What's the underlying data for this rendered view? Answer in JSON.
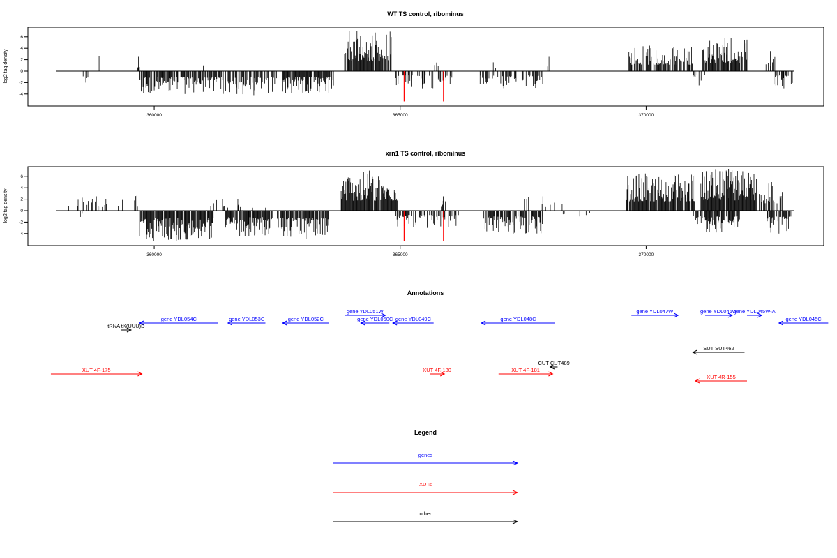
{
  "chart_data": [
    {
      "type": "bar",
      "title": "WT TS control, ribominus",
      "ylabel": "log2 tag density",
      "xlim": [
        358000,
        373000
      ],
      "ylim": [
        -5.5,
        7.5
      ],
      "xticks": [
        360000,
        365000,
        370000
      ],
      "yticks": [
        -4,
        -2,
        0,
        2,
        4,
        6
      ],
      "baseline": 0,
      "series": [
        {
          "color": "#000000",
          "segments": [
            {
              "strand": "+",
              "x_start": 358540,
              "x_end": 359220,
              "density": 0.04,
              "max": 2.6
            },
            {
              "strand": "+",
              "x_start": 359640,
              "x_end": 359720,
              "density": 0.8,
              "max": 2.5
            },
            {
              "strand": "+",
              "x_start": 360950,
              "x_end": 361050,
              "density": 0.2,
              "max": 1.0
            },
            {
              "strand": "+",
              "x_start": 363870,
              "x_end": 364820,
              "density": 0.9,
              "max": 7.0
            },
            {
              "strand": "+",
              "x_start": 365700,
              "x_end": 365780,
              "density": 0.5,
              "max": 1.5
            },
            {
              "strand": "+",
              "x_start": 366700,
              "x_end": 366950,
              "density": 0.2,
              "max": 2.0
            },
            {
              "strand": "+",
              "x_start": 367950,
              "x_end": 368100,
              "density": 0.15,
              "max": 2.5
            },
            {
              "strand": "+",
              "x_start": 369650,
              "x_end": 370950,
              "density": 0.7,
              "max": 4.5
            },
            {
              "strand": "+",
              "x_start": 371150,
              "x_end": 372050,
              "density": 0.9,
              "max": 5.8
            },
            {
              "strand": "+",
              "x_start": 372400,
              "x_end": 372650,
              "density": 0.6,
              "max": 3.5
            },
            {
              "strand": "-",
              "x_start": 358520,
              "x_end": 358700,
              "density": 0.15,
              "max": 2.0
            },
            {
              "strand": "-",
              "x_start": 359700,
              "x_end": 361550,
              "density": 0.7,
              "max": 4.0
            },
            {
              "strand": "-",
              "x_start": 361550,
              "x_end": 362500,
              "density": 0.6,
              "max": 4.2
            },
            {
              "strand": "-",
              "x_start": 362600,
              "x_end": 363650,
              "density": 0.9,
              "max": 4.0
            },
            {
              "strand": "-",
              "x_start": 364850,
              "x_end": 366050,
              "density": 0.3,
              "max": 3.0
            },
            {
              "strand": "-",
              "x_start": 366600,
              "x_end": 367900,
              "density": 0.5,
              "max": 3.0
            },
            {
              "strand": "-",
              "x_start": 370950,
              "x_end": 371200,
              "density": 0.3,
              "max": 2.5
            },
            {
              "strand": "-",
              "x_start": 372600,
              "x_end": 373000,
              "density": 0.5,
              "max": 3.0
            }
          ]
        },
        {
          "color": "#ff0000",
          "bars": [
            {
              "x": 365080,
              "y": -5.3
            },
            {
              "x": 365880,
              "y": -5.3
            }
          ]
        }
      ]
    },
    {
      "type": "bar",
      "title": "xrn1 TS control, ribominus",
      "ylabel": "log2 tag density",
      "xlim": [
        358000,
        373000
      ],
      "ylim": [
        -5.5,
        7.5
      ],
      "xticks": [
        360000,
        365000,
        370000
      ],
      "yticks": [
        -4,
        -2,
        0,
        2,
        4,
        6
      ],
      "baseline": 0,
      "series": [
        {
          "color": "#000000",
          "segments": [
            {
              "strand": "+",
              "x_start": 358250,
              "x_end": 359400,
              "density": 0.15,
              "max": 2.5
            },
            {
              "strand": "+",
              "x_start": 359600,
              "x_end": 359700,
              "density": 0.5,
              "max": 2.8
            },
            {
              "strand": "+",
              "x_start": 361100,
              "x_end": 362300,
              "density": 0.08,
              "max": 2.0
            },
            {
              "strand": "+",
              "x_start": 363800,
              "x_end": 364950,
              "density": 0.95,
              "max": 7.0
            },
            {
              "strand": "+",
              "x_start": 365800,
              "x_end": 365950,
              "density": 0.4,
              "max": 2.5
            },
            {
              "strand": "+",
              "x_start": 367500,
              "x_end": 368300,
              "density": 0.1,
              "max": 2.5
            },
            {
              "strand": "+",
              "x_start": 369600,
              "x_end": 371000,
              "density": 0.95,
              "max": 6.5
            },
            {
              "strand": "+",
              "x_start": 371100,
              "x_end": 372250,
              "density": 0.95,
              "max": 7.2
            },
            {
              "strand": "+",
              "x_start": 372300,
              "x_end": 372800,
              "density": 0.7,
              "max": 5.0
            },
            {
              "strand": "-",
              "x_start": 358500,
              "x_end": 358650,
              "density": 0.2,
              "max": 2.0
            },
            {
              "strand": "-",
              "x_start": 359700,
              "x_end": 361200,
              "density": 0.95,
              "max": 5.3
            },
            {
              "strand": "-",
              "x_start": 361450,
              "x_end": 362400,
              "density": 0.8,
              "max": 4.5
            },
            {
              "strand": "-",
              "x_start": 362500,
              "x_end": 363550,
              "density": 0.9,
              "max": 5.0
            },
            {
              "strand": "-",
              "x_start": 364900,
              "x_end": 366200,
              "density": 0.5,
              "max": 3.0
            },
            {
              "strand": "-",
              "x_start": 366700,
              "x_end": 367900,
              "density": 0.8,
              "max": 4.0
            },
            {
              "strand": "-",
              "x_start": 368300,
              "x_end": 369000,
              "density": 0.1,
              "max": 1.0
            },
            {
              "strand": "-",
              "x_start": 370950,
              "x_end": 371900,
              "density": 0.8,
              "max": 3.8
            },
            {
              "strand": "-",
              "x_start": 372450,
              "x_end": 372950,
              "density": 0.7,
              "max": 4.0
            }
          ]
        },
        {
          "color": "#ff0000",
          "bars": [
            {
              "x": 365080,
              "y": -5.3
            },
            {
              "x": 365880,
              "y": -5.3
            }
          ]
        }
      ]
    },
    {
      "type": "diagram",
      "title": "Annotations",
      "features": [
        {
          "label": "gene YDL054C",
          "category": "gene",
          "strand": "-",
          "arrow_start": 359700,
          "arrow_end": 361300
        },
        {
          "label": "gene YDL053C",
          "category": "gene",
          "strand": "-",
          "arrow_start": 361500,
          "arrow_end": 362260
        },
        {
          "label": "gene YDL052C",
          "category": "gene",
          "strand": "-",
          "arrow_start": 362610,
          "arrow_end": 363550
        },
        {
          "label": "gene YDL051W",
          "category": "gene",
          "strand": "+",
          "arrow_start": 363870,
          "arrow_end": 364700
        },
        {
          "label": "gene YDL050C",
          "category": "gene",
          "strand": "-",
          "arrow_start": 364200,
          "arrow_end": 364780
        },
        {
          "label": "gene YDL049C",
          "category": "gene",
          "strand": "-",
          "arrow_start": 364850,
          "arrow_end": 365680
        },
        {
          "label": "gene YDL048C",
          "category": "gene",
          "strand": "-",
          "arrow_start": 366650,
          "arrow_end": 368150
        },
        {
          "label": "gene YDL047W",
          "category": "gene",
          "strand": "+",
          "arrow_start": 369700,
          "arrow_end": 370650
        },
        {
          "label": "gene YDL046W",
          "category": "gene",
          "strand": "+",
          "arrow_start": 371200,
          "arrow_end": 371750
        },
        {
          "label": "gene YDL045W-A",
          "category": "gene",
          "strand": "+",
          "arrow_start": 372050,
          "arrow_end": 372350
        },
        {
          "label": "gene YDL045C",
          "category": "gene",
          "strand": "-",
          "arrow_start": 372700,
          "arrow_end": 373700
        },
        {
          "label": "tRNA tK(UUU)D",
          "category": "other",
          "strand": "+",
          "arrow_start": 359330,
          "arrow_end": 359530
        },
        {
          "label": "SUT SUT462",
          "category": "other",
          "strand": "-",
          "arrow_start": 370950,
          "arrow_end": 372000
        },
        {
          "label": "CUT CUT489",
          "category": "other",
          "strand": "-",
          "arrow_start": 368050,
          "arrow_end": 368200
        },
        {
          "label": "XUT 4F-175",
          "category": "XUT",
          "strand": "+",
          "arrow_start": 357900,
          "arrow_end": 359750
        },
        {
          "label": "XUT 4F-180",
          "category": "XUT",
          "strand": "+",
          "arrow_start": 365600,
          "arrow_end": 365900
        },
        {
          "label": "XUT 4F-181",
          "category": "XUT",
          "strand": "+",
          "arrow_start": 367000,
          "arrow_end": 368100
        },
        {
          "label": "XUT 4R-155",
          "category": "XUT",
          "strand": "-",
          "arrow_start": 371000,
          "arrow_end": 372050
        }
      ]
    },
    {
      "type": "legend",
      "title": "Legend",
      "entries": [
        {
          "label": "genes",
          "color": "#0000ff"
        },
        {
          "label": "XUTs",
          "color": "#ff0000"
        },
        {
          "label": "other",
          "color": "#000000"
        }
      ]
    }
  ],
  "colors": {
    "gene": "#0000ff",
    "XUT": "#ff0000",
    "other": "#000000",
    "axis": "#000000"
  }
}
